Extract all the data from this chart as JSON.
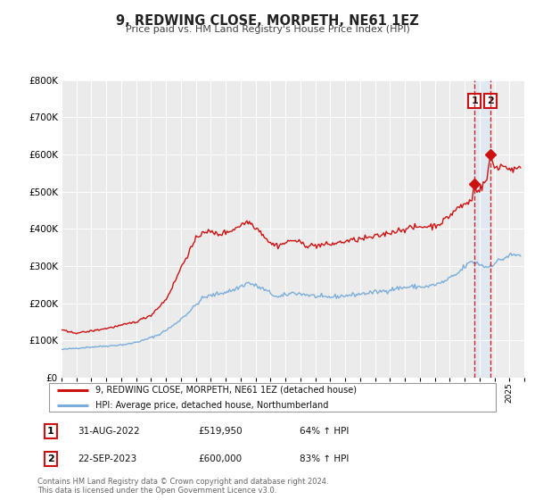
{
  "title": "9, REDWING CLOSE, MORPETH, NE61 1EZ",
  "subtitle": "Price paid vs. HM Land Registry's House Price Index (HPI)",
  "legend_line1": "9, REDWING CLOSE, MORPETH, NE61 1EZ (detached house)",
  "legend_line2": "HPI: Average price, detached house, Northumberland",
  "annotation1_label": "1",
  "annotation1_date": "31-AUG-2022",
  "annotation1_price": "£519,950",
  "annotation1_hpi": "64% ↑ HPI",
  "annotation2_label": "2",
  "annotation2_date": "22-SEP-2023",
  "annotation2_price": "£600,000",
  "annotation2_hpi": "83% ↑ HPI",
  "footer1": "Contains HM Land Registry data © Crown copyright and database right 2024.",
  "footer2": "This data is licensed under the Open Government Licence v3.0.",
  "hpi_color": "#7aaddc",
  "price_color": "#cc1111",
  "plot_bg": "#ebebeb",
  "ylim": [
    0,
    800000
  ],
  "xmin": 1995,
  "xmax": 2026,
  "sale1_year": 2022.667,
  "sale1_value": 519950,
  "sale2_year": 2023.727,
  "sale2_value": 600000
}
